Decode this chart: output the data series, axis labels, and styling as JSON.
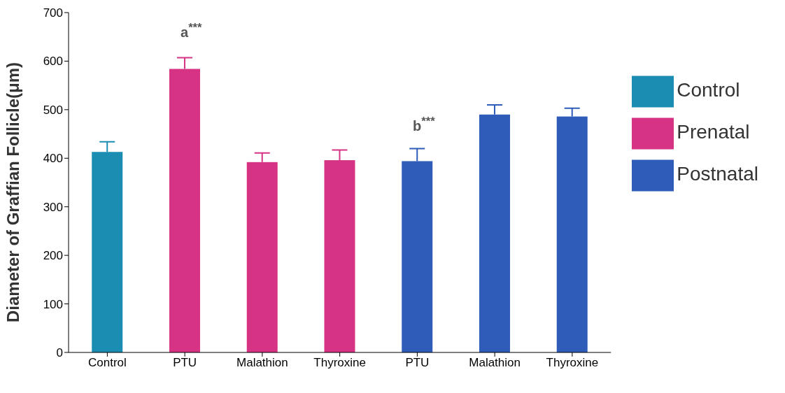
{
  "chart_data": {
    "type": "bar",
    "ylabel": "Diameter of Graffian Follicle(μm)",
    "categories": [
      "Control",
      "PTU",
      "Malathion",
      "Thyroxine",
      "PTU",
      "Malathion",
      "Thyroxine"
    ],
    "series": [
      {
        "name": "Control",
        "color": "#1b8db2",
        "values": [
          413,
          null,
          null,
          null,
          null,
          null,
          null
        ],
        "errors": [
          [
            413,
            434
          ],
          null,
          null,
          null,
          null,
          null,
          null
        ]
      },
      {
        "name": "Prenatal",
        "color": "#d63384",
        "values": [
          null,
          584,
          392,
          396,
          null,
          null,
          null
        ],
        "errors": [
          null,
          [
            584,
            607
          ],
          [
            392,
            411
          ],
          [
            396,
            417
          ],
          null,
          null,
          null
        ]
      },
      {
        "name": "Postnatal",
        "color": "#2f5cb8",
        "values": [
          null,
          null,
          null,
          null,
          394,
          490,
          486
        ],
        "errors": [
          null,
          null,
          null,
          null,
          [
            394,
            420
          ],
          [
            490,
            510
          ],
          [
            486,
            503
          ]
        ]
      }
    ],
    "ylim": [
      0,
      700
    ],
    "yticks": [
      0,
      100,
      200,
      300,
      400,
      500,
      600,
      700
    ],
    "grid": false,
    "legend": "right",
    "annotations": [
      "a$^{***}$",
      "b$^{***}$"
    ]
  }
}
